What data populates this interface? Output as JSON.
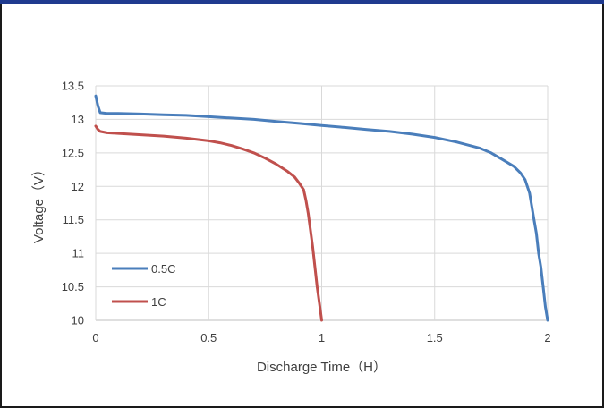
{
  "chart_data": {
    "type": "line",
    "title": "",
    "xlabel": "Discharge Time（H）",
    "ylabel": "Voltage（V）",
    "xlim": [
      0,
      2
    ],
    "ylim": [
      10,
      13.5
    ],
    "xticks": [
      "0",
      "0.5",
      "1",
      "1.5",
      "2"
    ],
    "yticks": [
      "10",
      "10.5",
      "11",
      "11.5",
      "12",
      "12.5",
      "13",
      "13.5"
    ],
    "grid": true,
    "legend": "bottom-left",
    "series": [
      {
        "name": "0.5C",
        "color": "#4a7ebb",
        "x": [
          0,
          0.01,
          0.02,
          0.05,
          0.1,
          0.2,
          0.3,
          0.4,
          0.5,
          0.6,
          0.7,
          0.8,
          0.9,
          1.0,
          1.1,
          1.2,
          1.3,
          1.4,
          1.5,
          1.6,
          1.7,
          1.75,
          1.8,
          1.85,
          1.88,
          1.9,
          1.91,
          1.92,
          1.93,
          1.94,
          1.95,
          1.96,
          1.97,
          1.98,
          1.99,
          2.0
        ],
        "y": [
          13.35,
          13.2,
          13.1,
          13.09,
          13.09,
          13.08,
          13.07,
          13.06,
          13.04,
          13.02,
          13.0,
          12.97,
          12.94,
          12.91,
          12.88,
          12.85,
          12.82,
          12.78,
          12.73,
          12.66,
          12.57,
          12.5,
          12.4,
          12.3,
          12.2,
          12.1,
          12.0,
          11.9,
          11.7,
          11.5,
          11.3,
          11.0,
          10.8,
          10.5,
          10.2,
          10.0
        ]
      },
      {
        "name": "1C",
        "color": "#c0504d",
        "x": [
          0,
          0.01,
          0.02,
          0.05,
          0.1,
          0.2,
          0.3,
          0.4,
          0.5,
          0.55,
          0.6,
          0.65,
          0.7,
          0.75,
          0.8,
          0.85,
          0.88,
          0.9,
          0.92,
          0.93,
          0.94,
          0.95,
          0.96,
          0.97,
          0.98,
          0.99,
          1.0
        ],
        "y": [
          12.9,
          12.85,
          12.82,
          12.8,
          12.79,
          12.77,
          12.75,
          12.72,
          12.68,
          12.65,
          12.61,
          12.56,
          12.5,
          12.42,
          12.33,
          12.22,
          12.14,
          12.05,
          11.95,
          11.8,
          11.6,
          11.35,
          11.1,
          10.8,
          10.5,
          10.25,
          10.0
        ]
      }
    ]
  }
}
